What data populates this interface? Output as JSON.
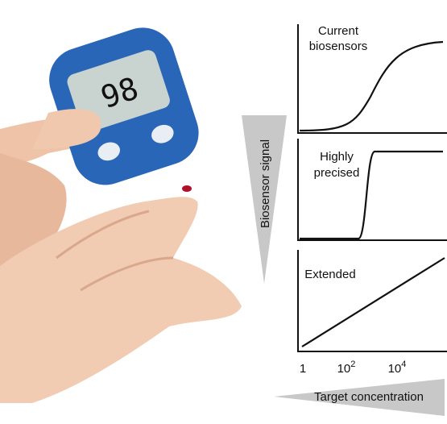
{
  "photo": {
    "meter_reading": "98"
  },
  "y_axis_label": "Biosensor signal",
  "x_axis_label": "Target concentration",
  "panels": [
    {
      "label_lines": [
        "Current",
        "biosensors"
      ]
    },
    {
      "label_lines": [
        "Highly",
        "precised"
      ]
    },
    {
      "label_lines": [
        "Extended"
      ]
    }
  ],
  "x_ticks": [
    {
      "base": "1"
    },
    {
      "base": "10",
      "exponent": "2"
    },
    {
      "base": "10",
      "exponent": "4"
    }
  ]
}
